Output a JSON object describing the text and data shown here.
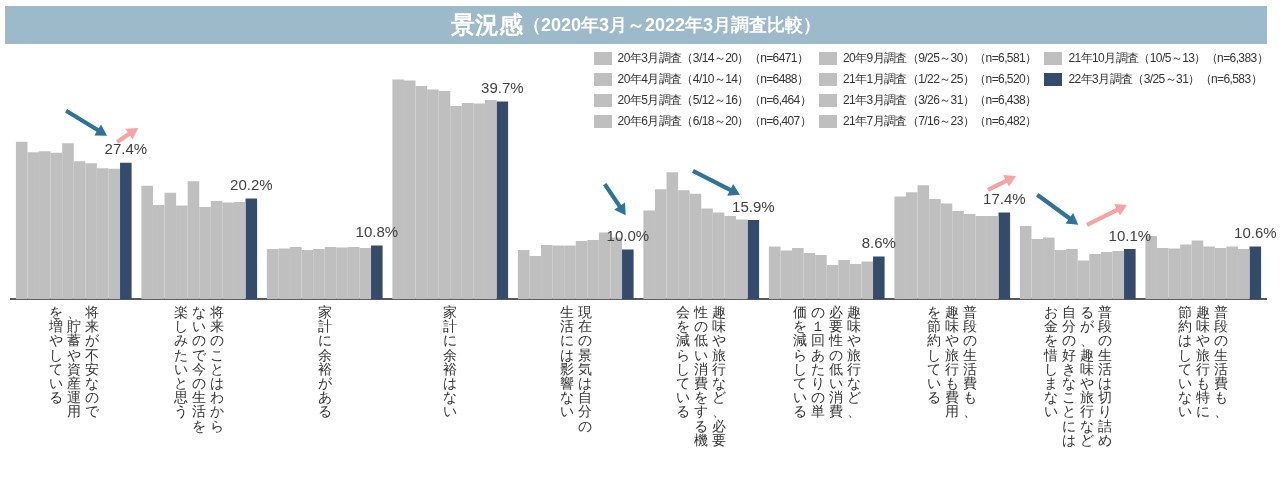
{
  "chart_data": {
    "type": "bar",
    "title": "景況感",
    "subtitle": "（2020年3月～2022年3月調査比較）",
    "categories": [
      "将来が不安なので、貯蓄や資産運用を増やしている",
      "将来のことはわからないので今の生活を楽しみたいと思う",
      "家計に余裕がある",
      "家計に余裕はない",
      "現在の景気は自分の生活には影響ない",
      "趣味や旅行など、必要性の低い消費をする機会を減らしている",
      "趣味や旅行など、必要性の低い消費の１回あたりの単価を減らしている",
      "普段の生活費も、趣味や旅行も費用を節約している",
      "普段の生活は切り詰めるが、趣味や旅行など自分の好きなことにはお金を惜しまない",
      "普段の生活費も、趣味や旅行も特に節約はしていない"
    ],
    "series": [
      {
        "name": "20年3月調査（3/14～20）（n=6471）",
        "color": "#bfbfbf",
        "values": [
          31.6,
          22.8,
          10.1,
          44.1,
          9.9,
          17.8,
          10.6,
          20.6,
          14.7,
          12.7
        ]
      },
      {
        "name": "20年4月調査（4/10～14）（n=6488）",
        "color": "#bfbfbf",
        "values": [
          29.5,
          18.9,
          10.2,
          43.9,
          8.7,
          22.1,
          9.8,
          21.5,
          12.1,
          10.3
        ]
      },
      {
        "name": "20年5月調査（5/12～16）（n=6,464）",
        "color": "#bfbfbf",
        "values": [
          29.7,
          21.4,
          10.5,
          42.8,
          10.9,
          25.5,
          10.3,
          22.9,
          12.4,
          10.2
        ]
      },
      {
        "name": "20年6月調査（6/18～20）（n=6,407）",
        "color": "#bfbfbf",
        "values": [
          29.4,
          18.8,
          9.9,
          42.1,
          10.8,
          21.9,
          9.3,
          20.1,
          9.9,
          11.0
        ]
      },
      {
        "name": "20年9月調査（9/25～30）（n=6,581）",
        "color": "#bfbfbf",
        "values": [
          31.3,
          23.7,
          10.1,
          41.8,
          10.8,
          21.2,
          8.9,
          19.2,
          10.1,
          11.8
        ]
      },
      {
        "name": "21年1月調査（1/22～25）（n=6,520）",
        "color": "#bfbfbf",
        "values": [
          27.7,
          18.5,
          10.5,
          38.8,
          11.7,
          18.2,
          6.9,
          17.7,
          7.8,
          10.6
        ]
      },
      {
        "name": "21年3月調査（3/26～31）（n=6,438）",
        "color": "#bfbfbf",
        "values": [
          27.3,
          19.7,
          10.4,
          39.4,
          11.9,
          17.4,
          7.9,
          17.1,
          9.1,
          10.3
        ]
      },
      {
        "name": "21年7月調査（7/16～23）（n=6,482）",
        "color": "#bfbfbf",
        "values": [
          26.3,
          19.4,
          10.5,
          39.3,
          13.4,
          16.7,
          7.1,
          16.7,
          9.5,
          10.6
        ]
      },
      {
        "name": "21年10月調査（10/5～13）（n=6,383）",
        "color": "#bfbfbf",
        "values": [
          26.2,
          19.5,
          10.3,
          40.0,
          12.4,
          16.0,
          7.6,
          16.7,
          9.7,
          10.1
        ]
      },
      {
        "name": "22年3月調査（3/25～31）（n=6,583）",
        "color": "#344b6b",
        "values": [
          27.4,
          20.2,
          10.8,
          39.7,
          10.0,
          15.9,
          8.6,
          17.4,
          10.1,
          10.6
        ],
        "value_labels": [
          "27.4%",
          "20.2%",
          "10.8%",
          "39.7%",
          "10.0%",
          "15.9%",
          "8.6%",
          "17.4%",
          "10.1%",
          "10.6%"
        ]
      }
    ],
    "tick_labels": "x",
    "legend": "top right"
  }
}
